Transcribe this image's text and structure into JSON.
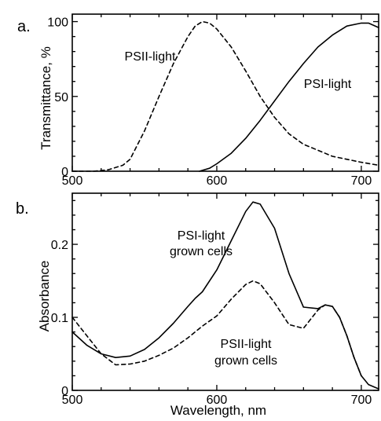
{
  "chart_data": [
    {
      "type": "line",
      "panel_label": "a.",
      "ylabel": "Transmittance, %",
      "xlabel": "",
      "xlim": [
        500,
        712
      ],
      "ylim": [
        0,
        105
      ],
      "xticks": [
        "500",
        "600",
        "700"
      ],
      "yticks": [
        "0",
        "50",
        "100"
      ],
      "series": [
        {
          "name": "PSII-light",
          "style": "dashed",
          "x": [
            500,
            515,
            525,
            535,
            540,
            550,
            560,
            570,
            580,
            585,
            590,
            595,
            600,
            610,
            620,
            630,
            640,
            650,
            660,
            670,
            680,
            690,
            700,
            712
          ],
          "y": [
            0,
            0,
            1,
            4,
            8,
            27,
            50,
            72,
            90,
            97,
            100,
            99,
            95,
            83,
            67,
            50,
            36,
            25,
            18,
            14,
            10,
            8,
            6,
            4
          ]
        },
        {
          "name": "PSI-light",
          "style": "solid",
          "x": [
            588,
            595,
            600,
            610,
            620,
            630,
            640,
            650,
            660,
            670,
            680,
            690,
            700,
            705,
            712
          ],
          "y": [
            0,
            2,
            5,
            12,
            22,
            34,
            47,
            60,
            72,
            83,
            91,
            97,
            99,
            99,
            96
          ]
        }
      ]
    },
    {
      "type": "line",
      "panel_label": "b.",
      "ylabel": "Absorbance",
      "xlabel": "Wavelength, nm",
      "xlim": [
        500,
        712
      ],
      "ylim": [
        0,
        0.27
      ],
      "xticks": [
        "500",
        "600",
        "700"
      ],
      "yticks": [
        "0",
        "0.1",
        "0.2"
      ],
      "series": [
        {
          "name": "PSI-light grown cells",
          "label_lines": [
            "PSI-light",
            "grown cells"
          ],
          "style": "solid",
          "x": [
            500,
            510,
            520,
            530,
            540,
            550,
            560,
            570,
            580,
            585,
            590,
            600,
            610,
            620,
            625,
            630,
            640,
            650,
            660,
            670,
            675,
            680,
            685,
            690,
            695,
            700,
            705,
            712
          ],
          "y": [
            0.08,
            0.062,
            0.05,
            0.045,
            0.047,
            0.056,
            0.072,
            0.092,
            0.115,
            0.126,
            0.135,
            0.165,
            0.205,
            0.245,
            0.258,
            0.255,
            0.222,
            0.16,
            0.114,
            0.112,
            0.117,
            0.115,
            0.1,
            0.075,
            0.045,
            0.02,
            0.008,
            0.002
          ]
        },
        {
          "name": "PSII-light grown cells",
          "label_lines": [
            "PSII-light",
            "grown cells"
          ],
          "style": "dashed",
          "x": [
            500,
            510,
            520,
            530,
            540,
            550,
            560,
            570,
            580,
            590,
            600,
            610,
            620,
            625,
            630,
            640,
            650,
            660,
            670,
            675,
            680,
            685,
            690,
            695,
            700
          ],
          "y": [
            0.1,
            0.075,
            0.05,
            0.035,
            0.036,
            0.04,
            0.048,
            0.058,
            0.072,
            0.088,
            0.102,
            0.125,
            0.145,
            0.15,
            0.146,
            0.12,
            0.09,
            0.085,
            0.11,
            0.117,
            0.115,
            0.1,
            0.075,
            0.045,
            0.02
          ]
        }
      ]
    }
  ]
}
